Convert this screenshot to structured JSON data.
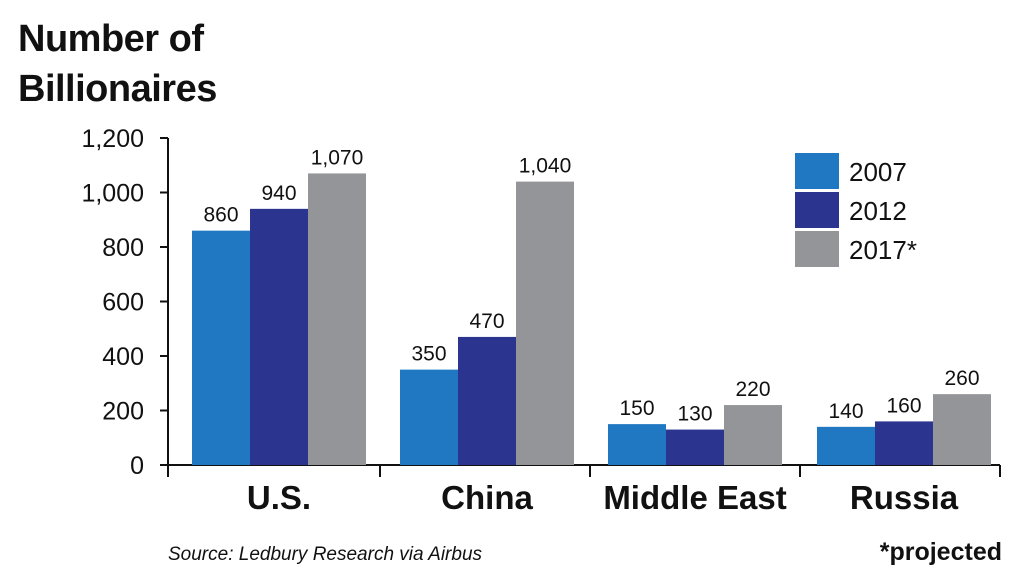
{
  "title_lines": [
    "Number of",
    "Billionaires"
  ],
  "source": "Source: Ledbury Research via Airbus",
  "footnote": "*projected",
  "chart_data": {
    "type": "bar",
    "categories": [
      "U.S.",
      "China",
      "Middle East",
      "Russia"
    ],
    "series": [
      {
        "name": "2007",
        "color": "#1f78c1",
        "values": [
          860,
          350,
          150,
          140
        ],
        "labels": [
          "860",
          "350",
          "150",
          "140"
        ]
      },
      {
        "name": "2012",
        "color": "#2b3590",
        "values": [
          940,
          470,
          130,
          160
        ],
        "labels": [
          "940",
          "470",
          "130",
          "160"
        ]
      },
      {
        "name": "2017*",
        "color": "#939598",
        "values": [
          1070,
          1040,
          220,
          260
        ],
        "labels": [
          "1,070",
          "1,040",
          "220",
          "260"
        ]
      }
    ],
    "ylim": [
      0,
      1200
    ],
    "yticks": [
      0,
      200,
      400,
      600,
      800,
      1000,
      1200
    ],
    "ytick_labels": [
      "0",
      "200",
      "400",
      "600",
      "800",
      "1,000",
      "1,200"
    ],
    "legend_position": "top-right",
    "grid": false
  }
}
